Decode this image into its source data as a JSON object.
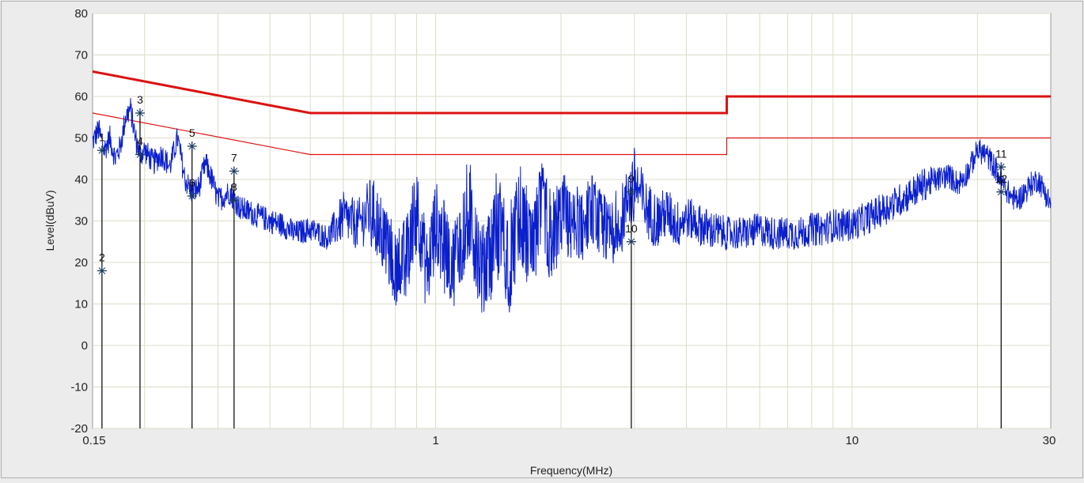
{
  "chart_data": {
    "type": "line",
    "xlabel": "Frequency(MHz)",
    "ylabel": "Level(dBuV)",
    "x_scale": "log",
    "xlim": [
      0.15,
      30
    ],
    "ylim": [
      -20,
      80
    ],
    "x_ticks": [
      0.15,
      1,
      10,
      30
    ],
    "x_tick_labels": [
      "0.15",
      "1",
      "10",
      "30"
    ],
    "y_ticks": [
      -20,
      -10,
      0,
      10,
      20,
      30,
      40,
      50,
      60,
      70,
      80
    ],
    "y_tick_labels": [
      "-20",
      "-10",
      "0",
      "10",
      "20",
      "30",
      "40",
      "50",
      "60",
      "70",
      "80"
    ],
    "grid": true,
    "colors": {
      "plot_bg": "#ffffff",
      "frame_bg": "#ececec",
      "grid": "#dcdcc8",
      "limit": "#dd1111",
      "trace": "#0a1fcc",
      "marker": "#000000"
    },
    "limit_lines": [
      {
        "x": [
          0.15,
          0.5,
          0.5,
          5,
          5,
          30
        ],
        "y": [
          66,
          56,
          56,
          56,
          60,
          60
        ],
        "stroke_width": 3
      },
      {
        "x": [
          0.15,
          0.5,
          0.5,
          5,
          5,
          30
        ],
        "y": [
          56,
          46,
          46,
          46,
          50,
          50
        ],
        "stroke_width": 1.2
      }
    ],
    "series": [
      {
        "x": [
          0.15,
          0.155,
          0.16,
          0.165,
          0.17,
          0.175,
          0.18,
          0.185,
          0.19,
          0.195,
          0.2,
          0.21,
          0.22,
          0.23,
          0.24,
          0.25,
          0.26,
          0.27,
          0.28,
          0.29,
          0.3,
          0.32,
          0.34,
          0.36,
          0.38,
          0.4,
          0.43,
          0.46,
          0.5,
          0.55,
          0.6,
          0.65,
          0.7,
          0.75,
          0.8,
          0.85,
          0.9,
          0.95,
          1.0,
          1.1,
          1.2,
          1.3,
          1.4,
          1.5,
          1.6,
          1.7,
          1.8,
          1.9,
          2.0,
          2.2,
          2.4,
          2.6,
          2.8,
          3.0,
          3.2,
          3.4,
          3.6,
          3.8,
          4.0,
          4.5,
          5.0,
          5.5,
          6.0,
          6.5,
          7.0,
          7.5,
          8.0,
          8.5,
          9.0,
          10.0,
          11.0,
          12.0,
          13.0,
          14.0,
          15.0,
          16.0,
          17.0,
          18.0,
          19.0,
          20.0,
          21.0,
          22.0,
          23.0,
          24.0,
          25.0,
          26.0,
          27.0,
          28.0,
          29.0,
          30.0
        ],
        "values": [
          49,
          52,
          47,
          50,
          45,
          48,
          55,
          57,
          50,
          46,
          47,
          44,
          46,
          43,
          50,
          40,
          37,
          38,
          44,
          40,
          35,
          37,
          33,
          32,
          31,
          30,
          29,
          27,
          28,
          26,
          31,
          29,
          33,
          28,
          20,
          22,
          35,
          18,
          30,
          20,
          34,
          17,
          31,
          22,
          33,
          25,
          34,
          27,
          33,
          30,
          34,
          29,
          31,
          40,
          33,
          30,
          32,
          29,
          31,
          28,
          27,
          27,
          28,
          27,
          27,
          27,
          28,
          28,
          29,
          29,
          31,
          33,
          35,
          37,
          39,
          40,
          41,
          39,
          42,
          47,
          46,
          43,
          39,
          36,
          35,
          37,
          39,
          40,
          37,
          34
        ],
        "noise": [
          3,
          3,
          3,
          3,
          3,
          3,
          3,
          3,
          3,
          3,
          3,
          3,
          3,
          3,
          3,
          3,
          3,
          3,
          3,
          3,
          3,
          3,
          3,
          3,
          3,
          3,
          3,
          3,
          3,
          3,
          6,
          6,
          8,
          8,
          9,
          9,
          10,
          10,
          10,
          10,
          12,
          12,
          12,
          12,
          11,
          11,
          10,
          10,
          9,
          9,
          8,
          8,
          8,
          8,
          7,
          7,
          6,
          6,
          5,
          5,
          4,
          4,
          4,
          4,
          4,
          4,
          4,
          4,
          4,
          4,
          4,
          4,
          4,
          4,
          4,
          3,
          3,
          3,
          3,
          3,
          3,
          3,
          3,
          3,
          3,
          3,
          3,
          3,
          3,
          3
        ]
      }
    ],
    "markers": [
      {
        "label": "1",
        "x": 0.158,
        "y": 47
      },
      {
        "label": "2",
        "x": 0.158,
        "y": 18
      },
      {
        "label": "3",
        "x": 0.195,
        "y": 56
      },
      {
        "label": "4",
        "x": 0.195,
        "y": 46
      },
      {
        "label": "5",
        "x": 0.26,
        "y": 48
      },
      {
        "label": "6",
        "x": 0.26,
        "y": 36
      },
      {
        "label": "7",
        "x": 0.328,
        "y": 42
      },
      {
        "label": "8",
        "x": 0.328,
        "y": 35
      },
      {
        "label": "9",
        "x": 2.95,
        "y": 37
      },
      {
        "label": "10",
        "x": 2.95,
        "y": 25
      },
      {
        "label": "11",
        "x": 22.8,
        "y": 43
      },
      {
        "label": "12",
        "x": 22.8,
        "y": 37
      }
    ]
  }
}
